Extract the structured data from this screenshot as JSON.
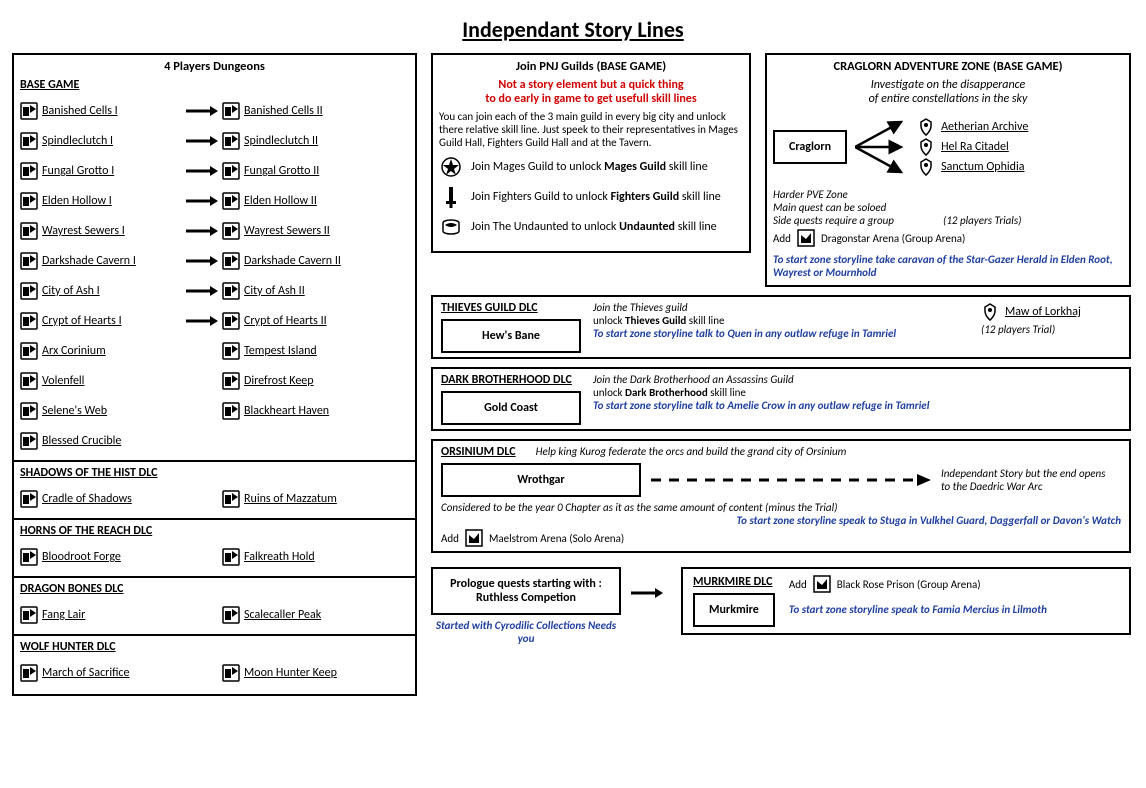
{
  "title": "Independant Story Lines",
  "dungeons": {
    "panel_title": "4 Players Dungeons",
    "sections": [
      {
        "header": "BASE GAME",
        "rows": [
          [
            "Banished Cells I",
            "Banished Cells II",
            true
          ],
          [
            "Spindleclutch I",
            "Spindleclutch II",
            true
          ],
          [
            "Fungal Grotto I",
            "Fungal Grotto II",
            true
          ],
          [
            "Elden Hollow I",
            "Elden Hollow II",
            true
          ],
          [
            "Wayrest Sewers I",
            "Wayrest Sewers II",
            true
          ],
          [
            "Darkshade Cavern I",
            "Darkshade Cavern II",
            true
          ],
          [
            "City of Ash I",
            "City of Ash II",
            true
          ],
          [
            "Crypt of Hearts I",
            "Crypt of Hearts II",
            true
          ],
          [
            "Arx Corinium",
            "Tempest Island",
            false
          ],
          [
            "Volenfell",
            "Direfrost Keep",
            false
          ],
          [
            "Selene's Web",
            "Blackheart Haven",
            false
          ],
          [
            "Blessed Crucible",
            "",
            false
          ]
        ]
      },
      {
        "header": "SHADOWS OF THE HIST DLC",
        "rows": [
          [
            "Cradle of Shadows",
            "Ruins of Mazzatum",
            false
          ]
        ]
      },
      {
        "header": "HORNS OF THE REACH DLC",
        "rows": [
          [
            "Bloodroot Forge",
            "Falkreath Hold",
            false
          ]
        ]
      },
      {
        "header": "DRAGON BONES DLC",
        "rows": [
          [
            "Fang Lair",
            "Scalecaller Peak",
            false
          ]
        ]
      },
      {
        "header": "WOLF HUNTER DLC",
        "rows": [
          [
            "March of Sacrifice",
            "Moon Hunter Keep",
            false
          ]
        ]
      }
    ]
  },
  "guilds": {
    "title": "Join PNJ Guilds (BASE GAME)",
    "red1": "Not a story element but a quick thing",
    "red2": "to do early in game  to get usefull skill lines",
    "intro": "You can join each of the 3 main guild in every big city and unlock there relative skill line. Just speek to their representatives in Mages Guild Hall, Fighters Guild Hall and at the Tavern.",
    "mages": "Join Mages Guild to unlock ",
    "mages_skill": "Mages Guild",
    "fighters": "Join Fighters Guild to unlock ",
    "fighters_skill": "Fighters Guild",
    "undaunted": "Join The Undaunted to unlock ",
    "undaunted_skill": "Undaunted",
    "skill_suffix": " skill line"
  },
  "craglorn": {
    "title": "CRAGLORN ADVENTURE ZONE (BASE GAME)",
    "desc1": "Investigate on the disapperance",
    "desc2": "of entire constellations in the sky",
    "zone": "Craglorn",
    "trials": [
      "Aetherian Archive",
      "Hel Ra Citadel",
      "Sanctum Ophidia"
    ],
    "pve_note": "Harder PVE Zone",
    "solo_note": "Main quest can be soloed",
    "group_note": "Side quests require a group",
    "trials_label": "(12 players Trials)",
    "arena_prefix": "Add",
    "arena": "Dragonstar Arena (Group Arena)",
    "start": "To start zone storyline take caravan of the Star-Gazer Herald in Elden Root, Wayrest or Mournhold"
  },
  "thieves": {
    "header": "THIEVES GUILD DLC",
    "zone": "Hew's Bane",
    "l1": "Join the Thieves guild",
    "l2a": "unlock ",
    "l2b": "Thieves Guild",
    "l2c": " skill line",
    "start": "To start zone storyline talk to Quen in any outlaw refuge in Tamriel",
    "trial": "Maw of Lorkhaj",
    "trial_label": "(12 players Trial)"
  },
  "dark": {
    "header": "DARK BROTHERHOOD DLC",
    "zone": "Gold Coast",
    "l1": "Join the Dark Brotherhood an Assassins Guild",
    "l2a": "unlock ",
    "l2b": "Dark Brotherhood",
    "l2c": " skill line",
    "start": "To start zone storyline talk to Amelie Crow in any outlaw refuge in Tamriel"
  },
  "orsinium": {
    "header": "ORSINIUM DLC",
    "l1": "Help king Kurog federate the orcs and build the grand city of Orsinium",
    "zone": "Wrothgar",
    "ind": "Independant Story but the end opens to the Daedric War Arc",
    "note": "Considered to be the year 0 Chapter as it as the same amount of content (minus the Trial)",
    "start": "To start zone storyline speak to Stuga in Vulkhel Guard, Daggerfall or Davon's Watch",
    "arena_prefix": "Add",
    "arena": "Maelstrom Arena (Solo Arena)"
  },
  "murkmire": {
    "prologue": "Prologue quests starting with : Ruthless Competion",
    "prologue_note": "Started with Cyrodilic Collections Needs you",
    "header": "MURKMIRE DLC",
    "zone": "Murkmire",
    "arena_prefix": "Add",
    "arena": "Black Rose Prison (Group Arena)",
    "start": "To start zone storyline speak to Famia Mercius in Lilmoth"
  }
}
